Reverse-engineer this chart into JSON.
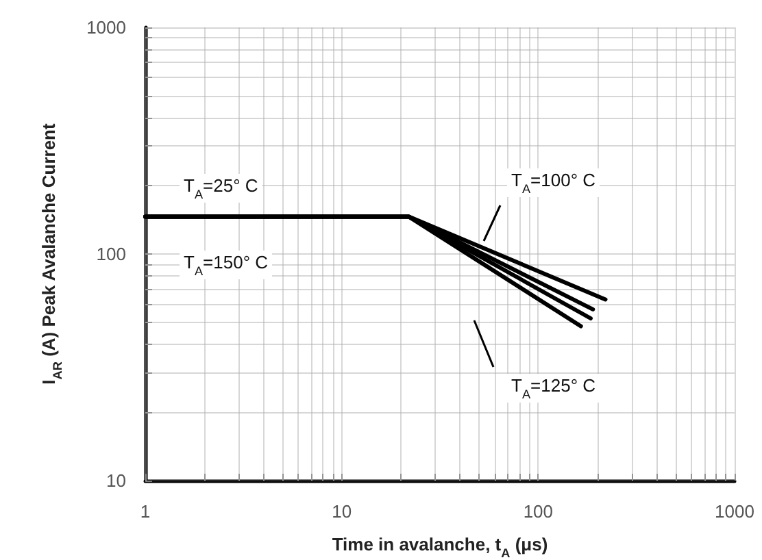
{
  "chart_data": {
    "type": "line",
    "xlabel": "Time in avalanche, t$_{A}$ (μs)",
    "ylabel": "I$_{AR}$ (A) Peak Avalanche Current",
    "log": "xy",
    "grid": true,
    "legend": false,
    "marker": "none",
    "line_style": "solid",
    "xlim": [
      1,
      1000
    ],
    "ylim": [
      10,
      1000
    ],
    "xticks": [
      1,
      {
        "value": 2,
        "label": null
      },
      {
        "value": 3,
        "label": null
      },
      {
        "value": 4,
        "label": null
      },
      {
        "value": 5,
        "label": null
      },
      {
        "value": 6,
        "label": null
      },
      {
        "value": 7,
        "label": null
      },
      {
        "value": 8,
        "label": null
      },
      {
        "value": 9,
        "label": null
      },
      10,
      {
        "value": 20,
        "label": null
      },
      {
        "value": 30,
        "label": null
      },
      {
        "value": 40,
        "label": null
      },
      {
        "value": 50,
        "label": null
      },
      {
        "value": 60,
        "label": null
      },
      {
        "value": 70,
        "label": null
      },
      {
        "value": 80,
        "label": null
      },
      {
        "value": 90,
        "label": null
      },
      100,
      {
        "value": 200,
        "label": null
      },
      {
        "value": 300,
        "label": null
      },
      {
        "value": 400,
        "label": null
      },
      {
        "value": 500,
        "label": null
      },
      {
        "value": 600,
        "label": null
      },
      {
        "value": 700,
        "label": null
      },
      {
        "value": 800,
        "label": null
      },
      {
        "value": 900,
        "label": null
      },
      1000
    ],
    "yticks": [
      10,
      {
        "value": 20,
        "label": null
      },
      {
        "value": 30,
        "label": null
      },
      {
        "value": 40,
        "label": null
      },
      {
        "value": 50,
        "label": null
      },
      {
        "value": 60,
        "label": null
      },
      {
        "value": 70,
        "label": null
      },
      {
        "value": 80,
        "label": null
      },
      {
        "value": 90,
        "label": null
      },
      100,
      {
        "value": 200,
        "label": null
      },
      {
        "value": 300,
        "label": null
      },
      {
        "value": 400,
        "label": null
      },
      {
        "value": 500,
        "label": null
      },
      {
        "value": 600,
        "label": null
      },
      {
        "value": 700,
        "label": null
      },
      {
        "value": 800,
        "label": null
      },
      {
        "value": 900,
        "label": null
      },
      1000
    ],
    "series": [
      {
        "name": "T$_{A}$=25° C",
        "color": "#000000",
        "x": [
          1,
          22,
          220
        ],
        "values": [
          146,
          146,
          63
        ]
      },
      {
        "name": "T$_{A}$=100° C",
        "color": "#000000",
        "x": [
          1,
          22,
          190
        ],
        "values": [
          146,
          146,
          57
        ]
      },
      {
        "name": "T$_{A}$=125° C",
        "color": "#000000",
        "x": [
          1,
          22,
          185
        ],
        "values": [
          146,
          146,
          52
        ]
      },
      {
        "name": "T$_{A}$=150° C",
        "color": "#000000",
        "x": [
          1,
          22,
          165
        ],
        "values": [
          146,
          146,
          48
        ]
      }
    ]
  }
}
